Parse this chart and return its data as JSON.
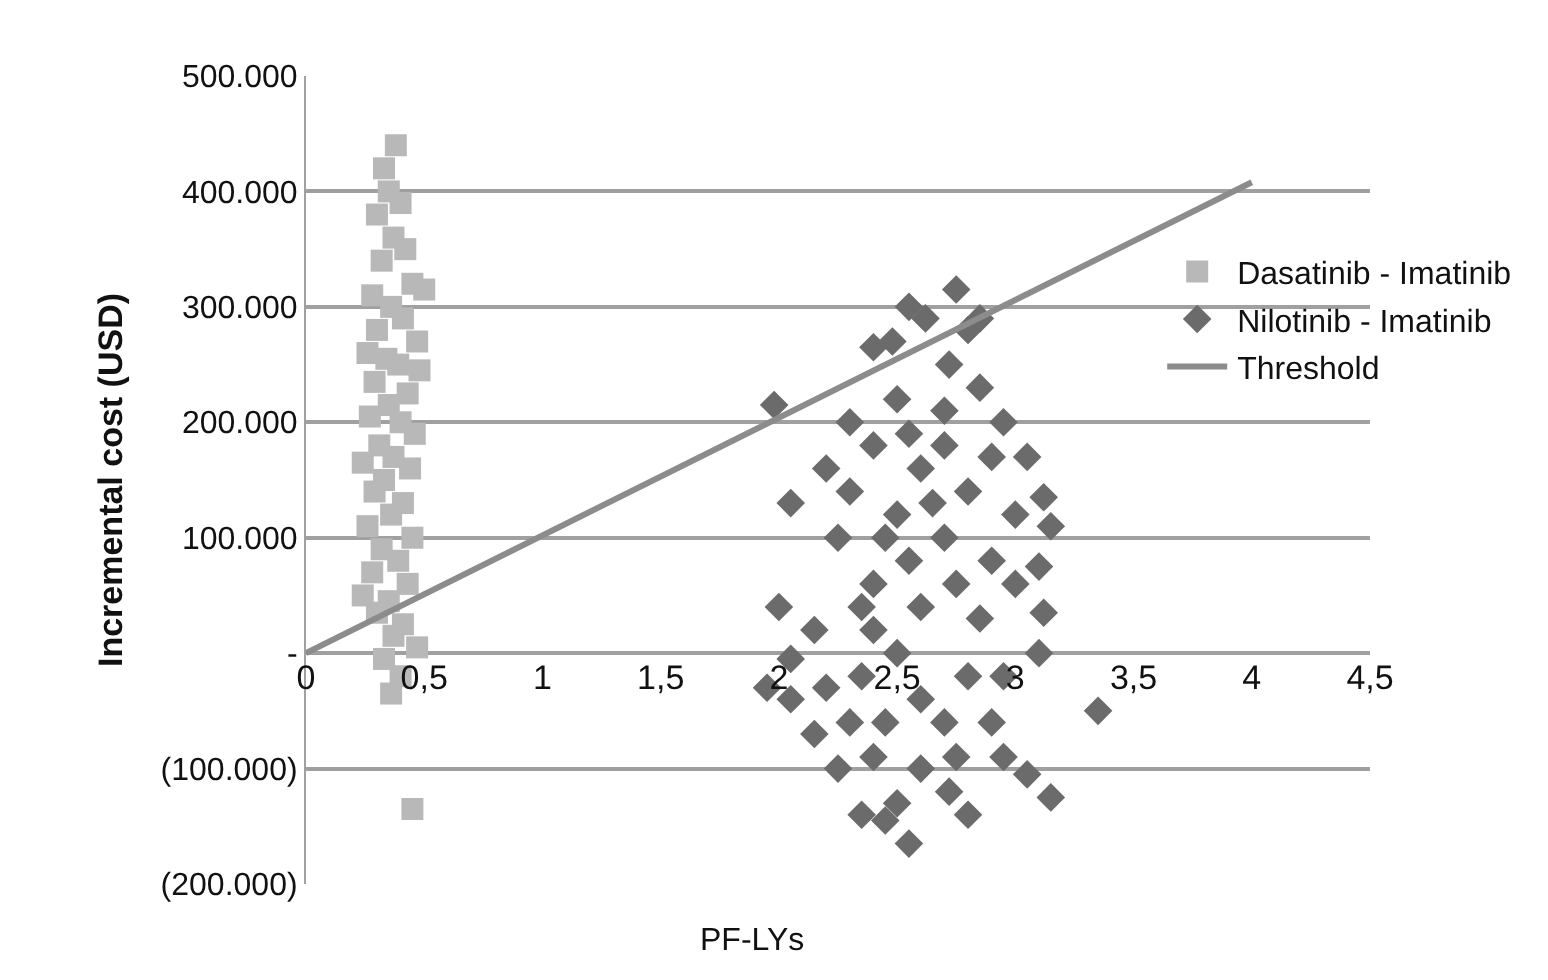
{
  "chart_data": {
    "type": "scatter",
    "xlabel": "PF-LYs",
    "ylabel": "Incremental cost (USD)",
    "xlim": [
      0,
      4.5
    ],
    "xticks": [
      0,
      {
        "value": 0.5,
        "label": "0,5"
      },
      1,
      {
        "value": 1.5,
        "label": "1,5"
      },
      2,
      {
        "value": 2.5,
        "label": "2,5"
      },
      3,
      {
        "value": 3.5,
        "label": "3,5"
      },
      4,
      {
        "value": 4.5,
        "label": "4,5"
      }
    ],
    "ylim": [
      -200000,
      500000
    ],
    "yticks": [
      {
        "value": -200000,
        "label": "(200.000)"
      },
      {
        "value": -100000,
        "label": "(100.000)"
      },
      {
        "value": 0,
        "label": "-"
      },
      {
        "value": 100000,
        "label": "100.000"
      },
      {
        "value": 200000,
        "label": "200.000"
      },
      {
        "value": 300000,
        "label": "300.000"
      },
      {
        "value": 400000,
        "label": "400.000"
      },
      {
        "value": 500000,
        "label": "500.000"
      }
    ],
    "grid": "y",
    "legend": "right",
    "series": [
      {
        "name": "Dasatinib - Imatinib",
        "marker": "square",
        "color": "#b8b8b8",
        "x": [
          0.38,
          0.33,
          0.35,
          0.4,
          0.3,
          0.37,
          0.42,
          0.32,
          0.45,
          0.5,
          0.28,
          0.36,
          0.41,
          0.3,
          0.47,
          0.26,
          0.34,
          0.39,
          0.48,
          0.29,
          0.43,
          0.35,
          0.27,
          0.4,
          0.46,
          0.31,
          0.37,
          0.24,
          0.44,
          0.33,
          0.29,
          0.41,
          0.36,
          0.26,
          0.45,
          0.32,
          0.39,
          0.28,
          0.43,
          0.24,
          0.35,
          0.3,
          0.41,
          0.37,
          0.47,
          0.33,
          0.4,
          0.36,
          0.45
        ],
        "values": [
          440000,
          420000,
          400000,
          390000,
          380000,
          360000,
          350000,
          340000,
          320000,
          315000,
          310000,
          300000,
          290000,
          280000,
          270000,
          260000,
          255000,
          250000,
          245000,
          235000,
          225000,
          215000,
          205000,
          200000,
          190000,
          180000,
          170000,
          165000,
          160000,
          150000,
          140000,
          130000,
          120000,
          110000,
          100000,
          90000,
          80000,
          70000,
          60000,
          50000,
          45000,
          35000,
          25000,
          15000,
          5000,
          -5000,
          -20000,
          -35000,
          -135000
        ]
      },
      {
        "name": "Nilotinib - Imatinib",
        "marker": "diamond",
        "color": "#6b6b6b",
        "x": [
          2.75,
          2.55,
          2.62,
          2.4,
          2.48,
          2.8,
          2.85,
          2.72,
          1.98,
          2.85,
          2.95,
          3.05,
          3.12,
          3.15,
          3.1,
          3.12,
          3.1,
          3.35,
          3.05,
          3.15,
          2.95,
          2.8,
          2.72,
          2.55,
          2.45,
          2.35,
          2.5,
          2.25,
          2.15,
          2.05,
          1.95,
          2.05,
          2.0,
          2.05,
          2.2,
          2.3,
          2.25,
          2.15,
          2.2,
          2.3,
          2.4,
          2.6,
          2.9,
          2.95,
          3.0,
          3.0,
          2.9,
          2.7,
          2.5,
          2.4,
          2.3,
          2.4,
          2.5,
          2.6,
          2.7,
          2.8,
          2.6,
          2.5,
          2.4,
          2.6,
          2.7,
          2.8,
          2.85,
          2.75,
          2.55,
          2.45,
          2.35,
          2.65,
          2.7,
          2.55,
          2.75,
          2.9,
          2.35,
          2.45
        ],
        "values": [
          315000,
          300000,
          290000,
          265000,
          270000,
          280000,
          290000,
          250000,
          215000,
          230000,
          200000,
          170000,
          135000,
          110000,
          75000,
          35000,
          0,
          -50000,
          -105000,
          -125000,
          -90000,
          -140000,
          -120000,
          -165000,
          -145000,
          -140000,
          -130000,
          -100000,
          -70000,
          -40000,
          -30000,
          -5000,
          40000,
          130000,
          160000,
          200000,
          100000,
          20000,
          -30000,
          -60000,
          -90000,
          -100000,
          -60000,
          -20000,
          60000,
          120000,
          170000,
          210000,
          220000,
          180000,
          140000,
          60000,
          0,
          40000,
          100000,
          140000,
          160000,
          120000,
          20000,
          -40000,
          -60000,
          -20000,
          30000,
          60000,
          80000,
          100000,
          40000,
          130000,
          180000,
          190000,
          -90000,
          80000,
          -20000,
          -60000
        ]
      },
      {
        "name": "Threshold",
        "type": "line",
        "line_style": "solid",
        "color": "#8c8c8c",
        "x": [
          0,
          4
        ],
        "values": [
          0,
          408000
        ]
      }
    ]
  }
}
